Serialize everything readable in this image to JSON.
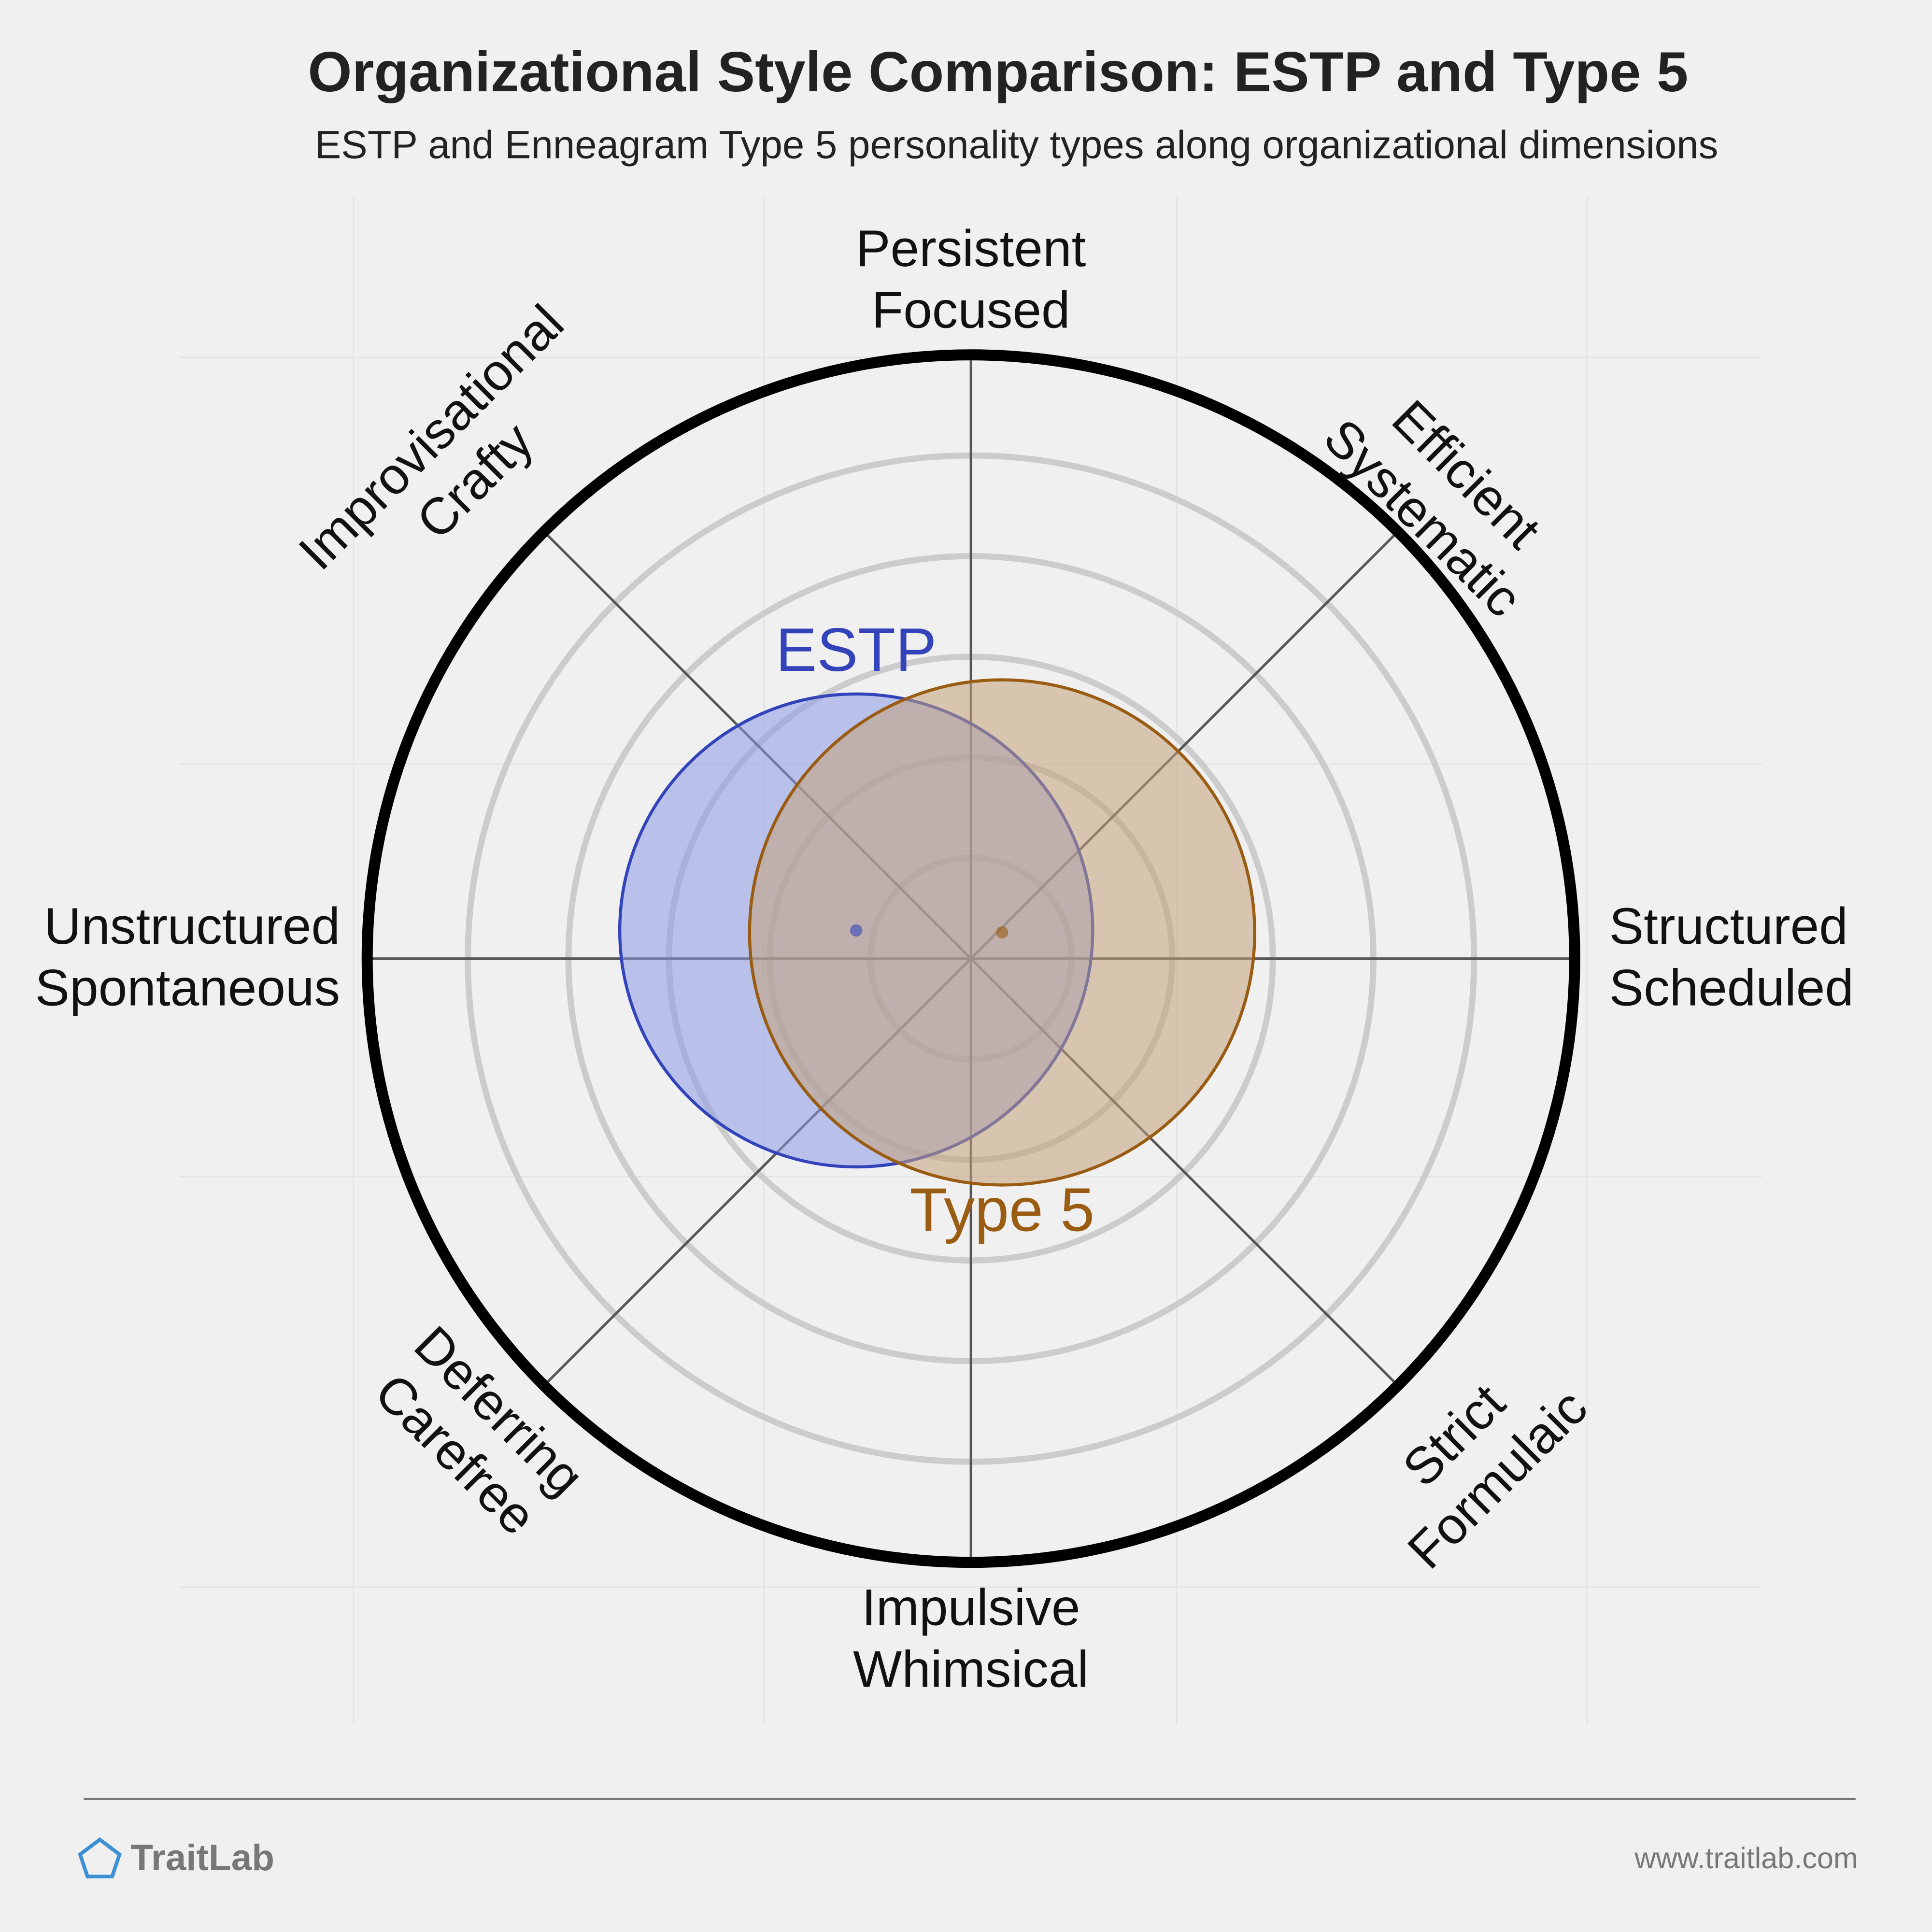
{
  "chart_data": {
    "type": "circle-overlap",
    "title": "Organizational Style Comparison: ESTP and Type 5",
    "subtitle": "ESTP and Enneagram Type 5 personality types along organizational dimensions",
    "axes": [
      {
        "lines": [
          "Persistent",
          "Focused"
        ]
      },
      {
        "lines": [
          "Efficient",
          "Systematic"
        ]
      },
      {
        "lines": [
          "Structured",
          "Scheduled"
        ]
      },
      {
        "lines": [
          "Strict",
          "Formulaic"
        ]
      },
      {
        "lines": [
          "Impulsive",
          "Whimsical"
        ]
      },
      {
        "lines": [
          "Deferring",
          "Carefree"
        ]
      },
      {
        "lines": [
          "Unstructured",
          "Spontaneous"
        ]
      },
      {
        "lines": [
          "Improvisational",
          "Crafty"
        ]
      }
    ],
    "rlim": [
      0,
      6
    ],
    "rings": [
      1,
      2,
      3,
      4,
      5
    ],
    "series": [
      {
        "name": "ESTP",
        "color": "#3344bb",
        "fill": "#8c9ae6",
        "x": -1.14,
        "y": 0.28,
        "r": 2.35
      },
      {
        "name": "Type 5",
        "color": "#9a5c12",
        "fill": "#c4a27a",
        "x": 0.31,
        "y": 0.26,
        "r": 2.51
      }
    ]
  },
  "footer": {
    "brand": "TraitLab",
    "url": "www.traitlab.com"
  }
}
